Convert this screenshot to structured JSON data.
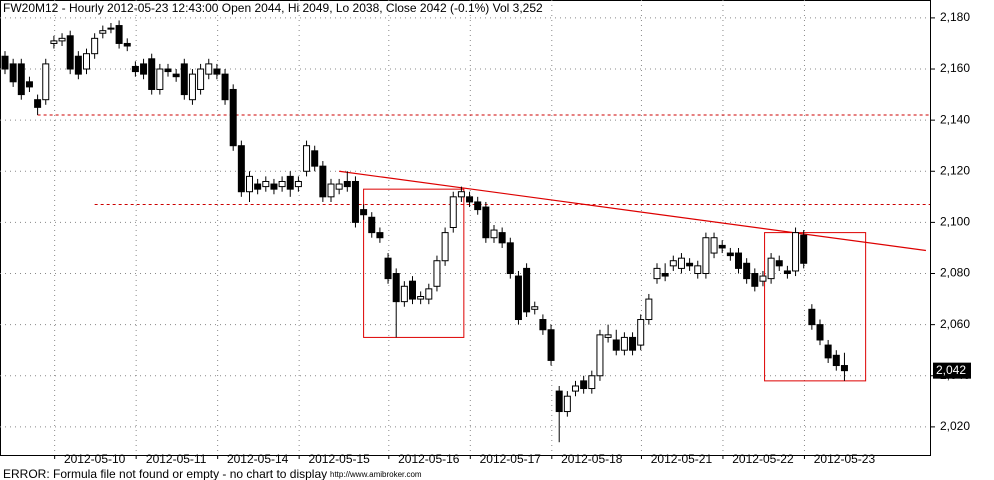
{
  "chart_data": {
    "type": "candlestick",
    "title": "FW20M12 - Hourly 2012-05-23 12:43:00 Open 2044, Hi 2049, Lo 2038, Close 2042 (-0.1%) Vol 3,252",
    "footer": "ERROR: Formula file not found or empty - no chart to display",
    "url": "http://www.amibroker.com",
    "categories": [
      null,
      null,
      null,
      null,
      null,
      null,
      null,
      null,
      null,
      null,
      null,
      "2012-05-10",
      null,
      null,
      null,
      null,
      null,
      null,
      null,
      null,
      null,
      "2012-05-11",
      null,
      null,
      null,
      null,
      null,
      null,
      null,
      null,
      null,
      "2012-05-14",
      null,
      null,
      null,
      null,
      null,
      null,
      null,
      null,
      null,
      "2012-05-15",
      null,
      null,
      null,
      null,
      null,
      null,
      null,
      null,
      null,
      null,
      "2012-05-16",
      null,
      null,
      null,
      null,
      null,
      null,
      null,
      null,
      null,
      "2012-05-17",
      null,
      null,
      null,
      null,
      null,
      null,
      null,
      null,
      null,
      "2012-05-18",
      null,
      null,
      null,
      null,
      null,
      null,
      null,
      null,
      null,
      null,
      "2012-05-21",
      null,
      null,
      null,
      null,
      null,
      null,
      null,
      null,
      null,
      "2012-05-22",
      null,
      null,
      null,
      null,
      null,
      null,
      null,
      null,
      null,
      "2012-05-23"
    ],
    "open": [
      2165,
      2162,
      2162,
      2155,
      2148,
      2148,
      2170,
      2171,
      2173,
      2165,
      2160,
      2166,
      2174,
      2176,
      2177,
      2170,
      2161,
      2162,
      2164,
      2152,
      2160,
      2158,
      2162,
      2148,
      2152,
      2158,
      2160,
      2158,
      2152,
      2130,
      2112,
      2115,
      2114,
      2115,
      2114,
      2118,
      2114,
      2120,
      2128,
      2122,
      2110,
      2113,
      2116,
      2116,
      2105,
      2102,
      2096,
      2086,
      2080,
      2069,
      2077,
      2070,
      2070,
      2075,
      2085,
      2098,
      2110,
      2110,
      2108,
      2106,
      2094,
      2096,
      2092,
      2079,
      2082,
      2066,
      2062,
      2058,
      2034,
      2026,
      2034,
      2038,
      2035,
      2040,
      2055,
      2054,
      2050,
      2055,
      2052,
      2062,
      2078,
      2080,
      2083,
      2082,
      2084,
      2080,
      2080,
      2088,
      2091,
      2088,
      2088,
      2084,
      2080,
      2077,
      2078,
      2085,
      2081,
      2081,
      2095,
      2066,
      2060,
      2052,
      2048,
      2044
    ],
    "high": [
      2167,
      2164,
      2164,
      2157,
      2150,
      2164,
      2173,
      2174,
      2175,
      2167,
      2168,
      2174,
      2177,
      2178,
      2179,
      2172,
      2163,
      2164,
      2166,
      2162,
      2162,
      2160,
      2164,
      2160,
      2162,
      2164,
      2162,
      2160,
      2154,
      2132,
      2120,
      2117,
      2118,
      2117,
      2118,
      2120,
      2118,
      2132,
      2130,
      2124,
      2117,
      2117,
      2120,
      2118,
      2107,
      2104,
      2098,
      2088,
      2082,
      2077,
      2079,
      2073,
      2076,
      2087,
      2098,
      2112,
      2114,
      2112,
      2110,
      2108,
      2099,
      2098,
      2094,
      2081,
      2084,
      2069,
      2064,
      2060,
      2036,
      2034,
      2038,
      2040,
      2042,
      2058,
      2060,
      2058,
      2057,
      2057,
      2064,
      2072,
      2084,
      2084,
      2087,
      2088,
      2086,
      2085,
      2096,
      2096,
      2093,
      2090,
      2090,
      2086,
      2082,
      2081,
      2088,
      2087,
      2083,
      2098,
      2097,
      2068,
      2062,
      2054,
      2050,
      2049
    ],
    "low": [
      2158,
      2153,
      2148,
      2151,
      2142,
      2146,
      2168,
      2169,
      2158,
      2156,
      2158,
      2164,
      2172,
      2174,
      2168,
      2167,
      2157,
      2156,
      2150,
      2150,
      2157,
      2155,
      2148,
      2146,
      2150,
      2156,
      2156,
      2146,
      2128,
      2110,
      2108,
      2111,
      2112,
      2111,
      2112,
      2110,
      2112,
      2118,
      2120,
      2108,
      2108,
      2111,
      2112,
      2098,
      2101,
      2094,
      2092,
      2076,
      2055,
      2067,
      2068,
      2068,
      2068,
      2073,
      2083,
      2096,
      2108,
      2106,
      2103,
      2092,
      2092,
      2090,
      2078,
      2060,
      2063,
      2064,
      2056,
      2044,
      2014,
      2024,
      2032,
      2033,
      2033,
      2038,
      2053,
      2048,
      2048,
      2048,
      2050,
      2060,
      2076,
      2077,
      2081,
      2080,
      2081,
      2078,
      2078,
      2086,
      2088,
      2085,
      2080,
      2076,
      2073,
      2075,
      2076,
      2081,
      2078,
      2079,
      2082,
      2058,
      2052,
      2045,
      2042,
      2038
    ],
    "close": [
      2160,
      2155,
      2150,
      2153,
      2145,
      2162,
      2171,
      2172,
      2160,
      2158,
      2166,
      2172,
      2175,
      2176,
      2170,
      2169,
      2159,
      2158,
      2152,
      2160,
      2159,
      2157,
      2150,
      2158,
      2160,
      2162,
      2158,
      2148,
      2130,
      2112,
      2118,
      2113,
      2116,
      2113,
      2116,
      2113,
      2116,
      2130,
      2122,
      2110,
      2115,
      2115,
      2114,
      2100,
      2103,
      2096,
      2094,
      2078,
      2069,
      2075,
      2070,
      2071,
      2074,
      2085,
      2096,
      2110,
      2112,
      2108,
      2105,
      2094,
      2097,
      2092,
      2080,
      2062,
      2065,
      2067,
      2058,
      2046,
      2026,
      2032,
      2036,
      2035,
      2040,
      2056,
      2056,
      2050,
      2055,
      2050,
      2062,
      2070,
      2082,
      2079,
      2085,
      2086,
      2083,
      2083,
      2094,
      2094,
      2090,
      2087,
      2082,
      2078,
      2075,
      2079,
      2086,
      2083,
      2080,
      2096,
      2084,
      2060,
      2054,
      2047,
      2044,
      2042
    ],
    "last_price": {
      "value": 2042,
      "label": "2,042"
    },
    "levels": [
      {
        "value": 2142,
        "from": 4
      },
      {
        "value": 2107,
        "from": 11
      }
    ],
    "trendline": {
      "x": [
        41,
        113
      ],
      "y": [
        2120,
        2089
      ]
    },
    "boxes": [
      {
        "x": [
          44,
          56.3
        ],
        "y": [
          2055,
          2113
        ]
      },
      {
        "x": [
          93.2,
          105.6
        ],
        "y": [
          2038,
          2096
        ]
      }
    ],
    "ylim": [
      2009,
      2187
    ],
    "yticks": [
      {
        "value": 2020,
        "label": "2,020"
      },
      {
        "value": 2040,
        "label": "2,040"
      },
      {
        "value": 2060,
        "label": "2,060"
      },
      {
        "value": 2080,
        "label": "2,080"
      },
      {
        "value": 2100,
        "label": "2,100"
      },
      {
        "value": 2120,
        "label": "2,120"
      },
      {
        "value": 2140,
        "label": "2,140"
      },
      {
        "value": 2160,
        "label": "2,160"
      },
      {
        "value": 2180,
        "label": "2,180"
      }
    ],
    "grid": true
  }
}
